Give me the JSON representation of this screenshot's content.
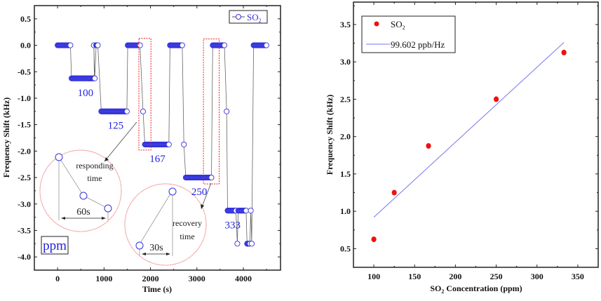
{
  "chart_data": [
    {
      "type": "line",
      "title": "",
      "xlabel": "Time (s)",
      "ylabel": "Frequency Shift (kHz)",
      "xlim": [
        -500,
        4800
      ],
      "ylim": [
        -4.25,
        0.75
      ],
      "xticks": [
        0,
        1000,
        2000,
        3000,
        4000
      ],
      "xtick_labels": [
        "0",
        "1000",
        "2000",
        "3000",
        "4000"
      ],
      "yticks": [
        0.5,
        0.0,
        -0.5,
        -1.0,
        -1.5,
        -2.0,
        -2.5,
        -3.0,
        -3.5,
        -4.0
      ],
      "ytick_labels": [
        "0.5",
        "0.0",
        "-0.5",
        "-1.0",
        "-1.5",
        "-2.0",
        "-2.5",
        "-3.0",
        "-3.5",
        "-4.0"
      ],
      "grid": false,
      "legend": {
        "position": "top-right",
        "entries": [
          {
            "label": "SO",
            "subscript": "2",
            "marker": "open-circle",
            "color": "#3333dd"
          }
        ]
      },
      "series": [
        {
          "name": "SO2",
          "color": "#3333dd",
          "line_color": "#555555",
          "marker": "open-circle",
          "segments": [
            {
              "t_start": 0,
              "t_end": 280,
              "value": 0.0
            },
            {
              "t_start": 300,
              "t_end": 800,
              "value": -0.625
            },
            {
              "t_start": 780,
              "t_end": 780,
              "value": 0.0
            },
            {
              "t_start": 800,
              "t_end": 800,
              "value": -0.625
            },
            {
              "t_start": 830,
              "t_end": 870,
              "value": 0.0
            },
            {
              "t_start": 940,
              "t_end": 1500,
              "value": -1.25
            },
            {
              "t_start": 1510,
              "t_end": 1780,
              "value": 0.0
            },
            {
              "t_start": 1840,
              "t_end": 1840,
              "value": -1.25
            },
            {
              "t_start": 1880,
              "t_end": 2400,
              "value": -1.875
            },
            {
              "t_start": 2420,
              "t_end": 2690,
              "value": 0.0
            },
            {
              "t_start": 2720,
              "t_end": 2720,
              "value": -1.875
            },
            {
              "t_start": 2760,
              "t_end": 3320,
              "value": -2.5
            },
            {
              "t_start": 3340,
              "t_end": 3600,
              "value": 0.0
            },
            {
              "t_start": 3640,
              "t_end": 3640,
              "value": -1.25
            },
            {
              "t_start": 3660,
              "t_end": 3850,
              "value": -3.125
            },
            {
              "t_start": 3870,
              "t_end": 3870,
              "value": -3.75
            },
            {
              "t_start": 3890,
              "t_end": 4060,
              "value": -3.125
            },
            {
              "t_start": 4080,
              "t_end": 4140,
              "value": -3.75
            },
            {
              "t_start": 4160,
              "t_end": 4160,
              "value": -3.125
            },
            {
              "t_start": 4180,
              "t_end": 4180,
              "value": -3.75
            },
            {
              "t_start": 4220,
              "t_end": 4500,
              "value": 0.0
            }
          ]
        }
      ],
      "annotations": {
        "concentration_labels": [
          {
            "text": "100",
            "t": 600,
            "v": -0.88
          },
          {
            "text": "125",
            "t": 1250,
            "v": -1.5
          },
          {
            "text": "167",
            "t": 2150,
            "v": -2.13
          },
          {
            "text": "250",
            "t": 3050,
            "v": -2.75
          },
          {
            "text": "333",
            "t": 3770,
            "v": -3.38
          }
        ],
        "unit_box": "ppm",
        "responding_inset": {
          "label_line1": "responding",
          "label_line2": "time",
          "interval": "60s"
        },
        "recovery_inset": {
          "label_line1": "recovery",
          "label_line2": "time",
          "interval": "30s"
        }
      }
    },
    {
      "type": "scatter",
      "title": "",
      "xlabel": "SO2 Concentration (ppm)",
      "xlabel_parts": {
        "pre": "SO",
        "sub": "2",
        "post": " Concentration (ppm)"
      },
      "ylabel": "Frequency Shift (kHz)",
      "xlim": [
        75,
        375
      ],
      "ylim": [
        0.25,
        3.8
      ],
      "xticks": [
        100,
        150,
        200,
        250,
        300,
        350
      ],
      "xtick_labels": [
        "100",
        "150",
        "200",
        "250",
        "300",
        "350"
      ],
      "yticks": [
        0.5,
        1.0,
        1.5,
        2.0,
        2.5,
        3.0,
        3.5
      ],
      "ytick_labels": [
        "0.5",
        "1.0",
        "1.5",
        "2.0",
        "2.5",
        "3.0",
        "3.5"
      ],
      "grid": false,
      "legend": {
        "position": "top-left",
        "entries": [
          {
            "label": "SO",
            "subscript": "2",
            "marker": "filled-circle",
            "color": "#ee1111"
          },
          {
            "label": "99.602 ppb/Hz",
            "marker": "line",
            "color": "#7777ee"
          }
        ]
      },
      "series": [
        {
          "name": "SO2",
          "color": "#ee1111",
          "x": [
            100,
            125,
            167,
            250,
            333
          ],
          "y": [
            0.625,
            1.25,
            1.875,
            2.5,
            3.125
          ]
        },
        {
          "name": "99.602 ppb/Hz",
          "color": "#7777ee",
          "type": "line",
          "x": [
            100,
            333
          ],
          "y": [
            0.92,
            3.26
          ]
        }
      ]
    }
  ]
}
